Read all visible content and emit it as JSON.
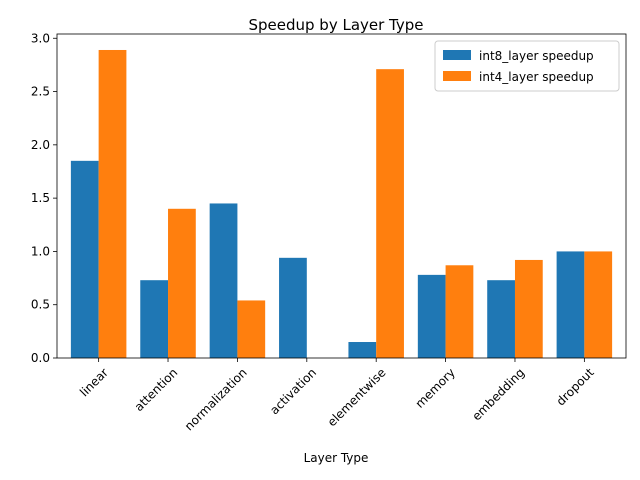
{
  "chart_data": {
    "type": "bar",
    "title": "Speedup by Layer Type",
    "xlabel": "Layer Type",
    "ylabel": "",
    "categories": [
      "linear",
      "attention",
      "normalization",
      "activation",
      "elementwise",
      "memory",
      "embedding",
      "dropout"
    ],
    "series": [
      {
        "name": "int8_layer speedup",
        "color": "#1f77b4",
        "values": [
          1.85,
          0.73,
          1.45,
          0.94,
          0.15,
          0.78,
          0.73,
          1.0
        ]
      },
      {
        "name": "int4_layer speedup",
        "color": "#ff7f0e",
        "values": [
          2.89,
          1.4,
          0.54,
          0.0,
          2.71,
          0.87,
          0.92,
          1.0
        ]
      }
    ],
    "ylim": [
      0,
      3.04
    ],
    "yticks": [
      "0.0",
      "0.5",
      "1.0",
      "1.5",
      "2.0",
      "2.5",
      "3.0"
    ],
    "grid": false,
    "legend_position": "top-right"
  }
}
